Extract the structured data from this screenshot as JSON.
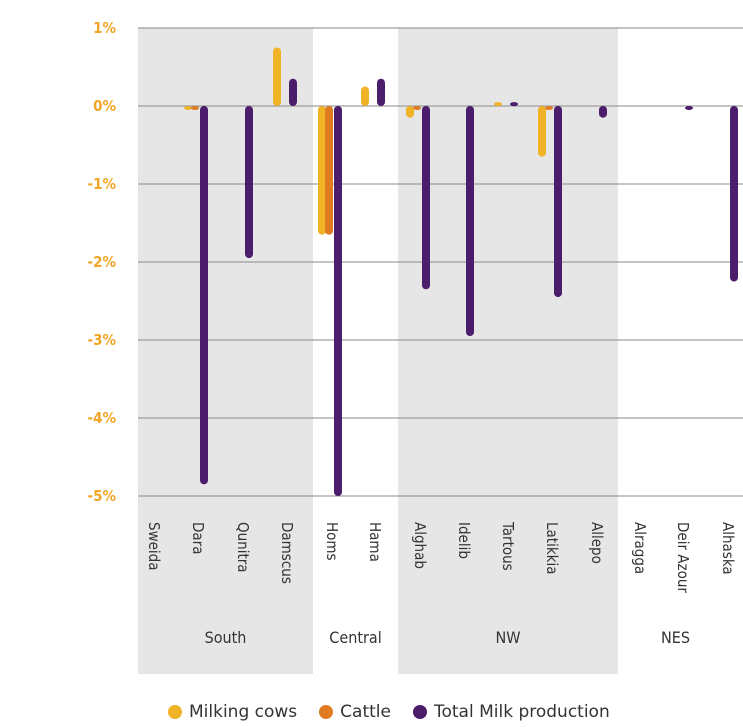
{
  "chart_data": {
    "type": "bar",
    "title": "",
    "xlabel": "",
    "ylabel": "",
    "ylim": [
      -5,
      1
    ],
    "yticks": [
      {
        "value": 1,
        "label": "1%"
      },
      {
        "value": 0,
        "label": "0%"
      },
      {
        "value": -1,
        "label": "-1%"
      },
      {
        "value": -2,
        "label": "-2%"
      },
      {
        "value": -3,
        "label": "-3%"
      },
      {
        "value": -4,
        "label": "-4%"
      },
      {
        "value": -5,
        "label": "-5%"
      }
    ],
    "categories": [
      "Sweida",
      "Dara",
      "Qunitra",
      "Damscus",
      "Homs",
      "Hama",
      "Alghab",
      "Idelib",
      "Tartous",
      "Latikkia",
      "Allepo",
      "Alragga",
      "Deir Azour",
      "Alhaska"
    ],
    "groups": [
      {
        "name": "South",
        "categories": [
          "Sweida",
          "Dara",
          "Qunitra",
          "Damscus"
        ],
        "shaded": true
      },
      {
        "name": "Central",
        "categories": [
          "Homs",
          "Hama"
        ],
        "shaded": false
      },
      {
        "name": "NW",
        "categories": [
          "Alghab",
          "Idelib",
          "Tartous",
          "Latikkia",
          "Allepo"
        ],
        "shaded": true
      },
      {
        "name": "NES",
        "categories": [
          "Alragga",
          "Deir Azour",
          "Alhaska"
        ],
        "shaded": false
      }
    ],
    "series": [
      {
        "name": "Milking cows",
        "color": "#f0b226",
        "values": [
          0.0,
          -0.05,
          0.0,
          0.75,
          -1.65,
          0.25,
          -0.15,
          0.0,
          0.05,
          -0.65,
          0.0,
          0.0,
          0.0,
          0.0
        ]
      },
      {
        "name": "Cattle",
        "color": "#e07b22",
        "values": [
          0.0,
          -0.05,
          0.0,
          0.0,
          -1.65,
          0.0,
          -0.05,
          0.0,
          0.0,
          -0.05,
          0.0,
          0.0,
          0.0,
          0.0
        ]
      },
      {
        "name": "Total Milk production",
        "color": "#4b1d6b",
        "values": [
          0.0,
          -4.85,
          -1.95,
          0.35,
          -5.0,
          0.35,
          -2.35,
          -2.95,
          0.05,
          -2.45,
          -0.15,
          0.0,
          -0.05,
          -2.25
        ]
      }
    ],
    "grid": true,
    "legend": "bottom"
  }
}
